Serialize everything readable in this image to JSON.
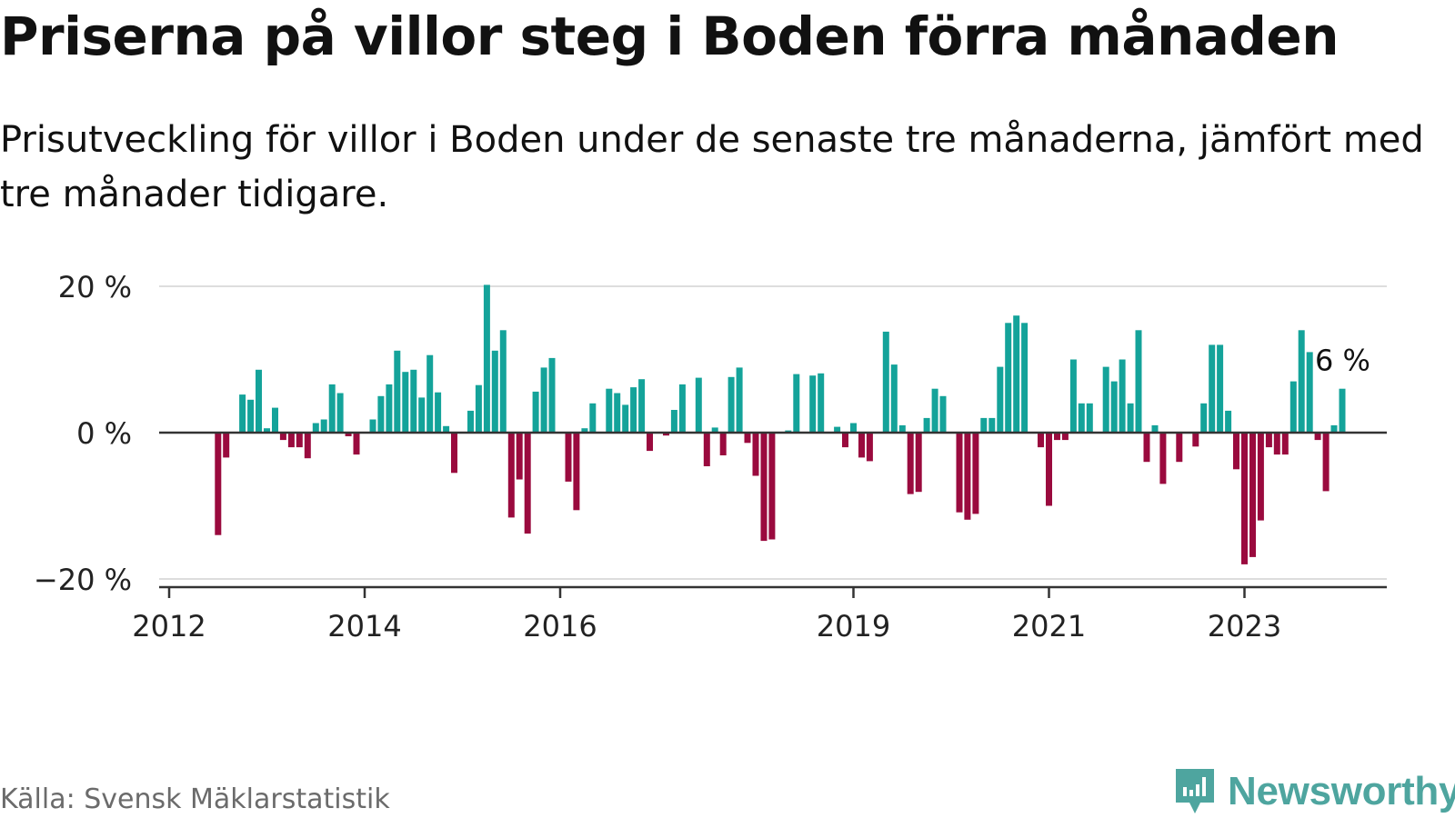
{
  "title": "Priserna på villor steg i Boden förra månaden",
  "subtitle": "Prisutveckling för villor i Boden under de senaste tre månaderna, jämfört med tre månader tidigare.",
  "source": "Källa: Svensk Mäklarstatistik",
  "brand": "Newsworthy",
  "colors": {
    "positive": "#14a39a",
    "negative": "#9a0a3e",
    "grid": "#dddddd",
    "axis": "#333333",
    "brand": "#4ea59f"
  },
  "chart_data": {
    "type": "bar",
    "ylim": [
      -20,
      20
    ],
    "yticks": [
      {
        "value": 20,
        "label": "20 %"
      },
      {
        "value": 0,
        "label": "0 %"
      },
      {
        "value": -20,
        "label": "−20 %"
      }
    ],
    "xticks": [
      {
        "year": 2012,
        "label": "2012"
      },
      {
        "year": 2014,
        "label": "2014"
      },
      {
        "year": 2016,
        "label": "2016"
      },
      {
        "year": 2019,
        "label": "2019"
      },
      {
        "year": 2021,
        "label": "2021"
      },
      {
        "year": 2023,
        "label": "2023"
      }
    ],
    "start": "2012-01",
    "annotation": {
      "text": "6 %",
      "value": 6
    },
    "values": [
      null,
      null,
      null,
      null,
      null,
      null,
      -14,
      -3.4,
      null,
      5.2,
      4.5,
      8.6,
      0.6,
      3.4,
      -1,
      -2,
      -2,
      -3.5,
      1.3,
      1.8,
      6.6,
      5.4,
      -0.5,
      -3,
      null,
      1.8,
      5,
      6.6,
      11.2,
      8.3,
      8.6,
      4.8,
      10.6,
      5.5,
      0.9,
      -5.5,
      null,
      3,
      6.5,
      20.2,
      11.2,
      14,
      -11.6,
      -6.4,
      -13.8,
      5.6,
      8.9,
      10.2,
      null,
      -6.7,
      -10.6,
      0.6,
      4,
      null,
      6,
      5.4,
      3.8,
      6.2,
      7.3,
      -2.5,
      null,
      -0.4,
      3.1,
      6.6,
      null,
      7.5,
      -4.6,
      0.7,
      -3.1,
      7.6,
      8.9,
      -1.4,
      -5.9,
      -14.8,
      -14.6,
      null,
      0.3,
      8,
      null,
      7.8,
      8.1,
      null,
      0.8,
      -2,
      1.3,
      -3.4,
      -3.9,
      null,
      13.8,
      9.3,
      1,
      -8.4,
      -8.1,
      2,
      6,
      5,
      null,
      -10.9,
      -11.9,
      -11.1,
      2,
      2,
      9,
      15,
      16,
      15,
      null,
      -2,
      -10,
      -1,
      -1,
      10,
      4,
      4,
      null,
      9,
      7,
      10,
      4,
      14,
      -4,
      1,
      -7,
      null,
      -4,
      null,
      -1.9,
      4,
      12,
      12,
      3,
      -5,
      -18,
      -17,
      -12,
      -2,
      -3,
      -3,
      7,
      14,
      11,
      -1,
      -8,
      1,
      6
    ]
  }
}
